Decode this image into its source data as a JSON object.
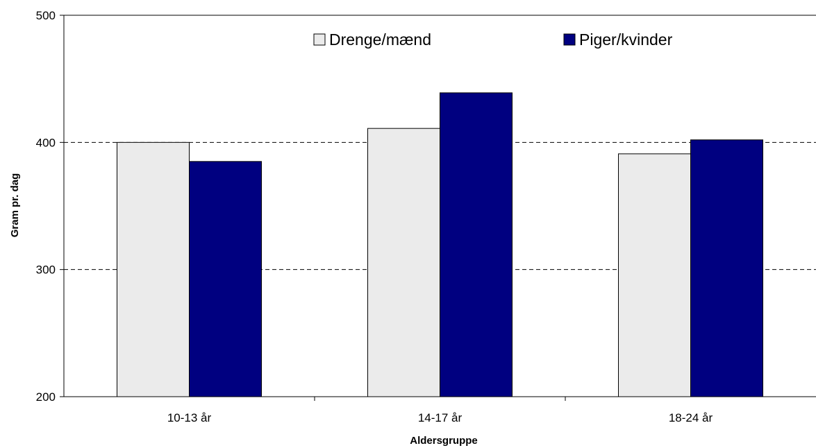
{
  "chart_data": {
    "type": "bar",
    "title": "",
    "xlabel": "Aldersgruppe",
    "ylabel": "Gram pr. dag",
    "categories": [
      "10-13 år",
      "14-17 år",
      "18-24 år"
    ],
    "series": [
      {
        "name": "Drenge/mænd",
        "values": [
          400,
          411,
          391
        ],
        "color": "#ebebeb"
      },
      {
        "name": "Piger/kvinder",
        "values": [
          385,
          439,
          402
        ],
        "color": "#000080"
      }
    ],
    "ylim": [
      200,
      500
    ],
    "yticks": [
      200,
      300,
      400,
      500
    ],
    "grid": "horizontal dashed",
    "legend": "top-center"
  }
}
